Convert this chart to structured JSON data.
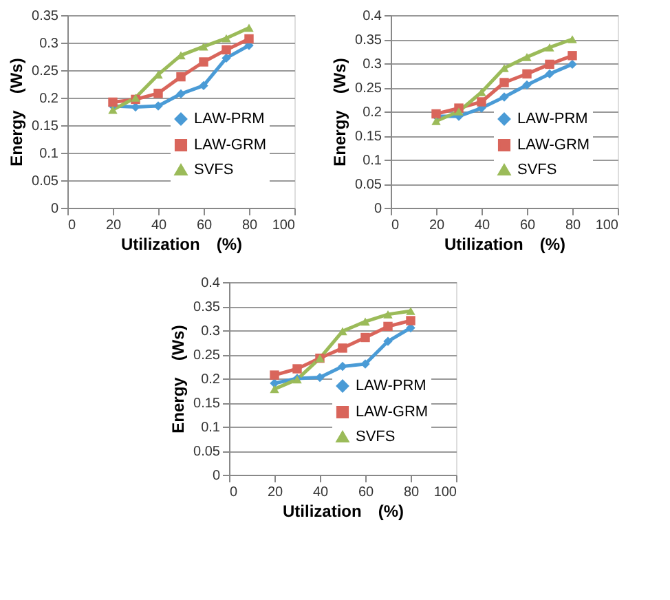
{
  "chart_data": [
    {
      "type": "line",
      "xlabel": "Utilization　(%)",
      "ylabel": "Energy　(Ws)",
      "x": [
        20,
        30,
        40,
        50,
        60,
        70,
        80
      ],
      "xlim": [
        0,
        100
      ],
      "xticks": [
        0,
        20,
        40,
        60,
        80,
        100
      ],
      "ylim": [
        0,
        0.35
      ],
      "yticks": [
        0,
        0.05,
        0.1,
        0.15,
        0.2,
        0.25,
        0.3,
        0.35
      ],
      "grid": "y",
      "legend": "bottom right",
      "line_style": "solid",
      "series": [
        {
          "name": "LAW-PRM",
          "color": "#4a9bd6",
          "marker": "diamond",
          "values": [
            0.185,
            0.183,
            0.185,
            0.207,
            0.222,
            0.272,
            0.295
          ]
        },
        {
          "name": "LAW-GRM",
          "color": "#d9655b",
          "marker": "square",
          "values": [
            0.192,
            0.197,
            0.208,
            0.238,
            0.265,
            0.287,
            0.307
          ]
        },
        {
          "name": "SVFS",
          "color": "#9bbb59",
          "marker": "triangle",
          "values": [
            0.178,
            0.2,
            0.242,
            0.277,
            0.293,
            0.308,
            0.327
          ]
        }
      ]
    },
    {
      "type": "line",
      "xlabel": "Utilization　(%)",
      "ylabel": "Energy　(Ws)",
      "x": [
        20,
        30,
        40,
        50,
        60,
        70,
        80
      ],
      "xlim": [
        0,
        100
      ],
      "xticks": [
        0,
        20,
        40,
        60,
        80,
        100
      ],
      "ylim": [
        0,
        0.4
      ],
      "yticks": [
        0,
        0.05,
        0.1,
        0.15,
        0.2,
        0.25,
        0.3,
        0.35,
        0.4
      ],
      "grid": "y",
      "legend": "bottom right",
      "line_style": "solid",
      "series": [
        {
          "name": "LAW-PRM",
          "color": "#4a9bd6",
          "marker": "diamond",
          "values": [
            0.19,
            0.19,
            0.207,
            0.23,
            0.255,
            0.278,
            0.298
          ]
        },
        {
          "name": "LAW-GRM",
          "color": "#d9655b",
          "marker": "square",
          "values": [
            0.195,
            0.207,
            0.22,
            0.26,
            0.278,
            0.298,
            0.316
          ]
        },
        {
          "name": "SVFS",
          "color": "#9bbb59",
          "marker": "triangle",
          "values": [
            0.18,
            0.2,
            0.24,
            0.29,
            0.313,
            0.333,
            0.35
          ]
        }
      ]
    },
    {
      "type": "line",
      "xlabel": "Utilization　(%)",
      "ylabel": "Energy　(Ws)",
      "x": [
        20,
        30,
        40,
        50,
        60,
        70,
        80
      ],
      "xlim": [
        0,
        100
      ],
      "xticks": [
        0,
        20,
        40,
        60,
        80,
        100
      ],
      "ylim": [
        0,
        0.4
      ],
      "yticks": [
        0,
        0.05,
        0.1,
        0.15,
        0.2,
        0.25,
        0.3,
        0.35,
        0.4
      ],
      "grid": "y",
      "legend": "bottom right",
      "line_style": "solid",
      "series": [
        {
          "name": "LAW-PRM",
          "color": "#4a9bd6",
          "marker": "diamond",
          "values": [
            0.19,
            0.2,
            0.202,
            0.225,
            0.23,
            0.277,
            0.305
          ]
        },
        {
          "name": "LAW-GRM",
          "color": "#d9655b",
          "marker": "square",
          "values": [
            0.207,
            0.22,
            0.242,
            0.263,
            0.285,
            0.308,
            0.32
          ]
        },
        {
          "name": "SVFS",
          "color": "#9bbb59",
          "marker": "triangle",
          "values": [
            0.178,
            0.198,
            0.242,
            0.298,
            0.318,
            0.333,
            0.34
          ]
        }
      ]
    }
  ]
}
